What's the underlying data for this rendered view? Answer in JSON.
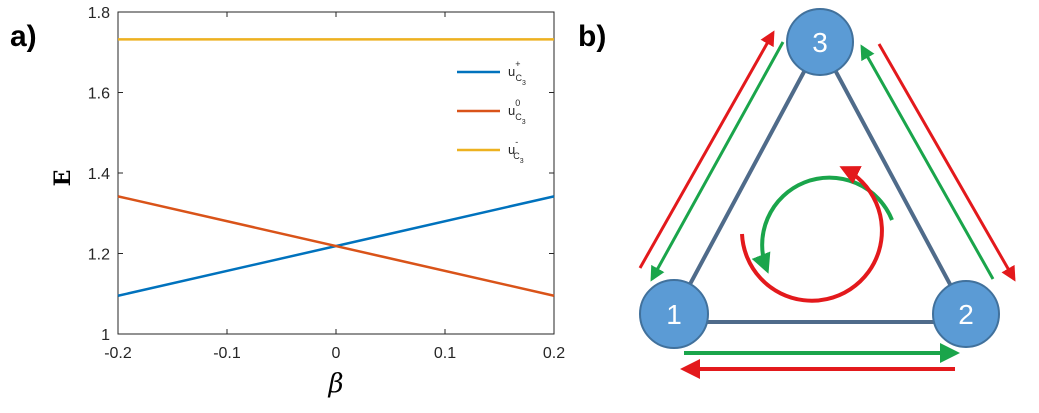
{
  "panel_labels": {
    "a": "a)",
    "b": "b)"
  },
  "chart_data": {
    "type": "line",
    "xlabel": "β",
    "ylabel": "E",
    "xlim": [
      -0.2,
      0.2
    ],
    "ylim": [
      1.0,
      1.8
    ],
    "xticks": [
      -0.2,
      -0.1,
      0,
      0.1,
      0.2
    ],
    "yticks": [
      1,
      1.2,
      1.4,
      1.6,
      1.8
    ],
    "xtick_labels": [
      "-0.2",
      "-0.1",
      "0",
      "0.1",
      "0.2"
    ],
    "ytick_labels": [
      "1",
      "1.2",
      "1.4",
      "1.6",
      "1.8"
    ],
    "grid": false,
    "legend_position": "top-right",
    "series": [
      {
        "name": "u",
        "sup": "+",
        "sub": "C",
        "subsub": "3",
        "color": "#0072BD",
        "x": [
          -0.2,
          0.2
        ],
        "y": [
          1.095,
          1.342
        ]
      },
      {
        "name": "u",
        "sup": "0",
        "sub": "C",
        "subsub": "3",
        "color": "#D95319",
        "x": [
          -0.2,
          0.2
        ],
        "y": [
          1.342,
          1.095
        ]
      },
      {
        "name": "u",
        "sup": "-",
        "sub": "C",
        "subsub": "3",
        "color": "#EDB120",
        "x": [
          -0.2,
          0.2
        ],
        "y": [
          1.732,
          1.732
        ]
      }
    ]
  },
  "diagram": {
    "nodes": [
      {
        "id": "node-1",
        "label": "1"
      },
      {
        "id": "node-2",
        "label": "2"
      },
      {
        "id": "node-3",
        "label": "3"
      }
    ],
    "colors": {
      "node_fill": "#5b9bd5",
      "node_stroke": "#41719c",
      "edge": "#4f6b8a",
      "arrow_green": "#1aa54b",
      "arrow_red": "#e3191c"
    }
  }
}
